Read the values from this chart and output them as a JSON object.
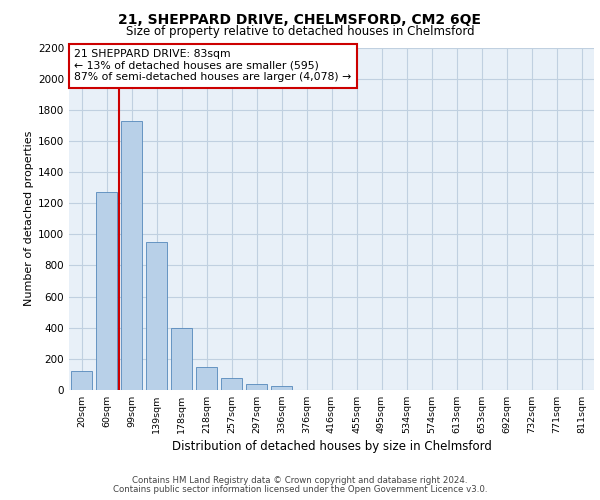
{
  "title_line1": "21, SHEPPARD DRIVE, CHELMSFORD, CM2 6QE",
  "title_line2": "Size of property relative to detached houses in Chelmsford",
  "xlabel": "Distribution of detached houses by size in Chelmsford",
  "ylabel": "Number of detached properties",
  "categories": [
    "20sqm",
    "60sqm",
    "99sqm",
    "139sqm",
    "178sqm",
    "218sqm",
    "257sqm",
    "297sqm",
    "336sqm",
    "376sqm",
    "416sqm",
    "455sqm",
    "495sqm",
    "534sqm",
    "574sqm",
    "613sqm",
    "653sqm",
    "692sqm",
    "732sqm",
    "771sqm",
    "811sqm"
  ],
  "values": [
    120,
    1270,
    1730,
    950,
    400,
    150,
    80,
    40,
    25,
    0,
    0,
    0,
    0,
    0,
    0,
    0,
    0,
    0,
    0,
    0,
    0
  ],
  "bar_color": "#b8d0e8",
  "bar_edge_color": "#5588bb",
  "grid_color": "#c0d0e0",
  "background_color": "#e8f0f8",
  "vline_color": "#cc0000",
  "vline_x": 1.5,
  "ylim": [
    0,
    2200
  ],
  "yticks": [
    0,
    200,
    400,
    600,
    800,
    1000,
    1200,
    1400,
    1600,
    1800,
    2000,
    2200
  ],
  "annotation_title": "21 SHEPPARD DRIVE: 83sqm",
  "annotation_line2": "← 13% of detached houses are smaller (595)",
  "annotation_line3": "87% of semi-detached houses are larger (4,078) →",
  "annotation_box_color": "#ffffff",
  "annotation_edge_color": "#cc0000",
  "footer_line1": "Contains HM Land Registry data © Crown copyright and database right 2024.",
  "footer_line2": "Contains public sector information licensed under the Open Government Licence v3.0."
}
